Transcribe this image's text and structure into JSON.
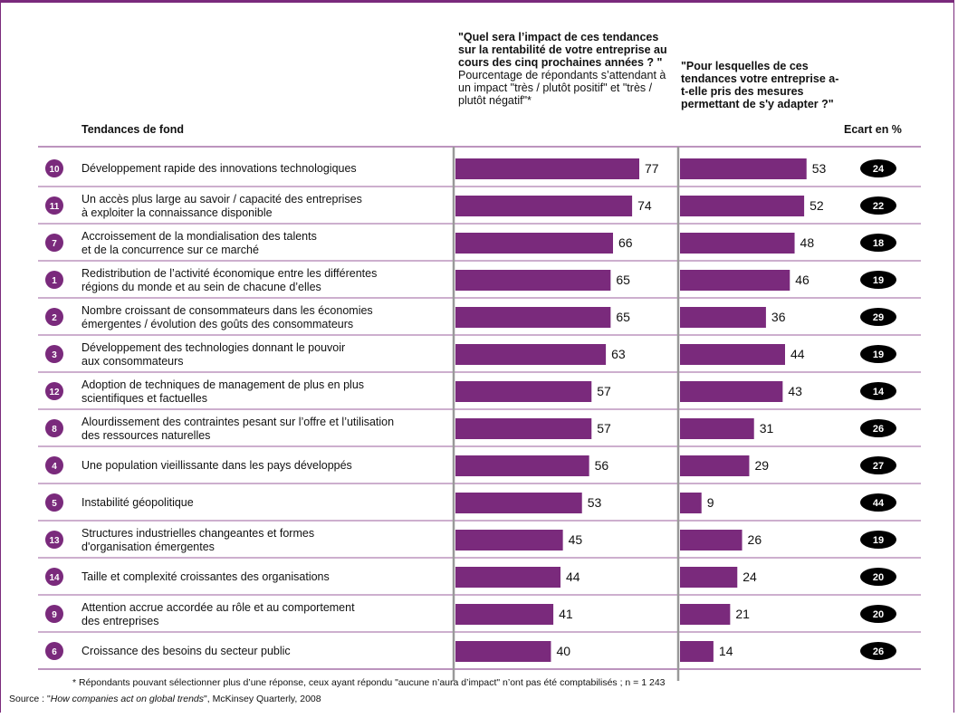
{
  "chart_data": {
    "type": "bar",
    "header": {
      "trend_label": "Tendances de fond",
      "col1_bold": "\"Quel sera l’impact de ces tendances sur la rentabilité de votre entreprise au cours des cinq prochaines années ? \"",
      "col1_normal": "Pourcentage de répondants s’attendant à un impact \"très / plutôt positif\" et \"très / plutôt négatif\"*",
      "col2_bold": "\"Pour lesquelles de ces tendances votre entreprise a-t-elle pris des mesures permettant de s'y adapter ?\"",
      "gap_label": "Ecart en %"
    },
    "rows": [
      {
        "num": "10",
        "label1": "Développement rapide des innovations technologiques",
        "label2": "",
        "impact": 77,
        "measures": 53,
        "gap": 24
      },
      {
        "num": "11",
        "label1": "Un accès plus large au savoir / capacité des entreprises",
        "label2": "à exploiter la connaissance disponible",
        "impact": 74,
        "measures": 52,
        "gap": 22
      },
      {
        "num": "7",
        "label1": "Accroissement de la mondialisation des talents",
        "label2": "et de la concurrence sur ce marché",
        "impact": 66,
        "measures": 48,
        "gap": 18
      },
      {
        "num": "1",
        "label1": "Redistribution de l’activité économique entre les différentes",
        "label2": "régions du monde et au sein de chacune d’elles",
        "impact": 65,
        "measures": 46,
        "gap": 19
      },
      {
        "num": "2",
        "label1": "Nombre croissant de consommateurs dans les économies",
        "label2": "émergentes / évolution des goûts des consommateurs",
        "impact": 65,
        "measures": 36,
        "gap": 29
      },
      {
        "num": "3",
        "label1": "Développement des technologies donnant le pouvoir",
        "label2": "aux consommateurs",
        "impact": 63,
        "measures": 44,
        "gap": 19
      },
      {
        "num": "12",
        "label1": "Adoption de techniques de management de plus en plus",
        "label2": "scientifiques et factuelles",
        "impact": 57,
        "measures": 43,
        "gap": 14
      },
      {
        "num": "8",
        "label1": "Alourdissement des contraintes pesant sur l’offre et l’utilisation",
        "label2": "des ressources naturelles",
        "impact": 57,
        "measures": 31,
        "gap": 26
      },
      {
        "num": "4",
        "label1": "Une population vieillissante dans les pays développés",
        "label2": "",
        "impact": 56,
        "measures": 29,
        "gap": 27
      },
      {
        "num": "5",
        "label1": "Instabilité géopolitique",
        "label2": "",
        "impact": 53,
        "measures": 9,
        "gap": 44
      },
      {
        "num": "13",
        "label1": "Structures industrielles changeantes et formes",
        "label2": "d'organisation émergentes",
        "impact": 45,
        "measures": 26,
        "gap": 19
      },
      {
        "num": "14",
        "label1": "Taille et complexité croissantes des organisations",
        "label2": "",
        "impact": 44,
        "measures": 24,
        "gap": 20
      },
      {
        "num": "9",
        "label1": "Attention accrue accordée au rôle et au comportement",
        "label2": "des entreprises",
        "impact": 41,
        "measures": 21,
        "gap": 20
      },
      {
        "num": "6",
        "label1": "Croissance des besoins du secteur public",
        "label2": "",
        "impact": 40,
        "measures": 14,
        "gap": 26
      }
    ],
    "xlim": [
      0,
      100
    ],
    "colors": {
      "bar": "#7a2a7c",
      "circle": "#7a2a7c",
      "gap_pill": "#000000",
      "frame": "#7a2a7c",
      "axis": "#999999",
      "separator": "#7a2a7c"
    }
  },
  "footnote": "* Répondants pouvant sélectionner plus d’une réponse, ceux ayant répondu \"aucune n’aura d’impact\" n’ont pas été comptabilisés ; n = 1 243",
  "source_prefix": "Source : \"",
  "source_title": "How companies act on global  trends",
  "source_suffix": "\", McKinsey Quarterly, 2008"
}
